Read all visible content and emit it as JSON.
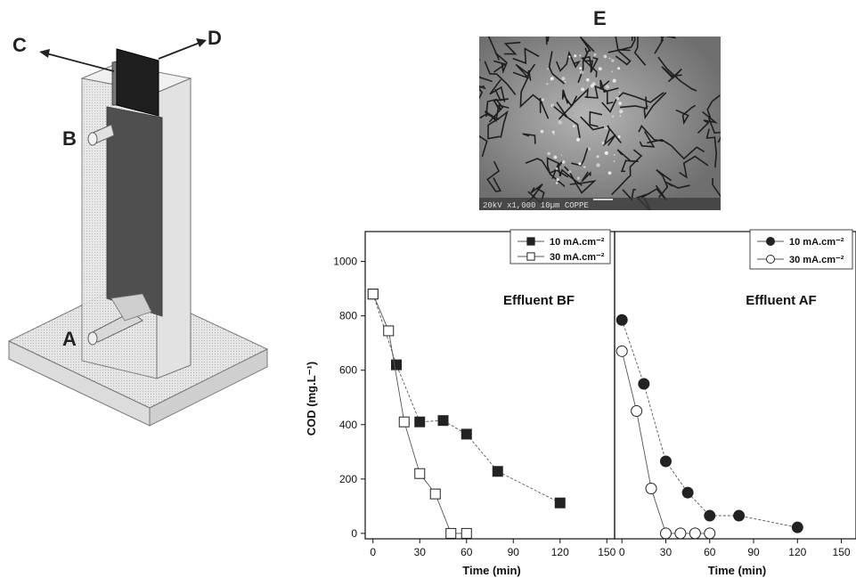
{
  "labels": {
    "a": "A",
    "b": "B",
    "c": "C",
    "d": "D",
    "e": "E"
  },
  "sem": {
    "scale_text": "20kV  x1,000   10µm    COPPE"
  },
  "chart_data": [
    {
      "type": "scatter",
      "title": "Effluent BF",
      "xlabel": "Time (min)",
      "ylabel": "COD (mg.L⁻¹)",
      "xlim": [
        -5,
        155
      ],
      "ylim": [
        -20,
        1110
      ],
      "xticks": [
        "0",
        "30",
        "60",
        "90",
        "120",
        "150"
      ],
      "yticks": [
        "0",
        "200",
        "400",
        "600",
        "800",
        "1000"
      ],
      "legend": "top-right",
      "series": [
        {
          "name": "10 mA.cm⁻²",
          "marker": "filled-square",
          "x": [
            0,
            15,
            30,
            45,
            60,
            80,
            120
          ],
          "y": [
            880,
            620,
            410,
            415,
            365,
            228,
            112
          ]
        },
        {
          "name": "30 mA.cm⁻²",
          "marker": "open-square",
          "x": [
            0,
            10,
            20,
            30,
            40,
            50,
            60
          ],
          "y": [
            880,
            745,
            410,
            220,
            145,
            0,
            0
          ]
        }
      ]
    },
    {
      "type": "scatter",
      "title": "Effluent AF",
      "xlabel": "Time (min)",
      "xlim": [
        -5,
        160
      ],
      "ylim": [
        -20,
        1110
      ],
      "xticks": [
        "0",
        "30",
        "60",
        "90",
        "120",
        "150"
      ],
      "legend": "top-right",
      "series": [
        {
          "name": "10 mA.cm⁻²",
          "marker": "filled-circle",
          "x": [
            0,
            15,
            30,
            45,
            60,
            80,
            120
          ],
          "y": [
            785,
            550,
            265,
            150,
            65,
            65,
            22
          ]
        },
        {
          "name": "30 mA.cm⁻²",
          "marker": "open-circle",
          "x": [
            0,
            10,
            20,
            30,
            40,
            50,
            60
          ],
          "y": [
            670,
            450,
            165,
            0,
            0,
            0,
            0
          ]
        }
      ]
    }
  ]
}
